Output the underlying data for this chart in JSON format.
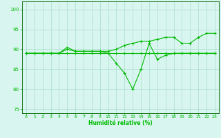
{
  "x": [
    0,
    1,
    2,
    3,
    4,
    5,
    6,
    7,
    8,
    9,
    10,
    11,
    12,
    13,
    14,
    15,
    16,
    17,
    18,
    19,
    20,
    21,
    22,
    23
  ],
  "line1": [
    89,
    89,
    89,
    89,
    89,
    89,
    89,
    89,
    89,
    89,
    89,
    89,
    89,
    89,
    89,
    89,
    89,
    89,
    89,
    89,
    89,
    89,
    89,
    89
  ],
  "line2": [
    89,
    89,
    89,
    89,
    89,
    90,
    89.5,
    89.5,
    89.5,
    89.5,
    89.5,
    90,
    91,
    91.5,
    92,
    92,
    92.5,
    93,
    93,
    91.5,
    91.5,
    93,
    94,
    94
  ],
  "line3": [
    89,
    89,
    89,
    89,
    89,
    90.5,
    89.5,
    89.5,
    89.5,
    89.5,
    89,
    86.5,
    84,
    80,
    85,
    91.5,
    87.5,
    88.5,
    89,
    89,
    89,
    89,
    89,
    89
  ],
  "xlim": [
    -0.5,
    23.5
  ],
  "ylim": [
    74,
    102
  ],
  "yticks": [
    75,
    80,
    85,
    90,
    95,
    100
  ],
  "xticks": [
    0,
    1,
    2,
    3,
    4,
    5,
    6,
    7,
    8,
    9,
    10,
    11,
    12,
    13,
    14,
    15,
    16,
    17,
    18,
    19,
    20,
    21,
    22,
    23
  ],
  "xlabel": "Humidité relative (%)",
  "bg_color": "#d8f5f0",
  "line_color": "#00bb00",
  "grid_color": "#aaddcc",
  "marker": "+",
  "marker_size": 3,
  "linewidth": 0.8
}
